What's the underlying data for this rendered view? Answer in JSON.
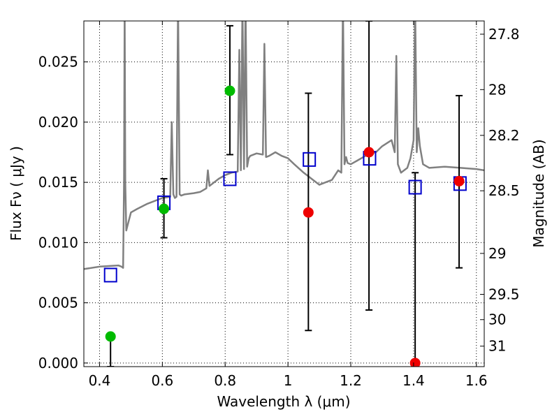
{
  "chart_data": {
    "type": "scatter",
    "title": "",
    "xlabel": "Wavelength  λ (μm)",
    "ylabel": "Flux  Fν  ( μJy )",
    "y2label": "Magnitude (AB)",
    "xlim": [
      0.35,
      1.625
    ],
    "ylim": [
      -0.0003,
      0.0284
    ],
    "grid": true,
    "x_ticks": [
      0.4,
      0.6,
      0.8,
      1.0,
      1.2,
      1.4,
      1.6
    ],
    "x_tick_labels": [
      "0.4",
      "0.6",
      "0.8",
      "1",
      "1.2",
      "1.4",
      "1.6"
    ],
    "y_ticks": [
      0.0,
      0.005,
      0.01,
      0.015,
      0.02,
      0.025
    ],
    "y_tick_labels": [
      "0.000",
      "0.005",
      "0.010",
      "0.015",
      "0.020",
      "0.025"
    ],
    "y2_ticks": [
      {
        "label": "27.8",
        "flux": 0.0273
      },
      {
        "label": "28",
        "flux": 0.0227
      },
      {
        "label": "28.2",
        "flux": 0.0189
      },
      {
        "label": "28.5",
        "flux": 0.0143
      },
      {
        "label": "29",
        "flux": 0.0091
      },
      {
        "label": "29.5",
        "flux": 0.0057
      },
      {
        "label": "30",
        "flux": 0.0036
      },
      {
        "label": "31",
        "flux": 0.0014
      }
    ],
    "series": [
      {
        "kind": "line",
        "color": "#808080",
        "x": [
          0.35,
          0.4,
          0.46,
          0.47,
          0.475,
          0.478,
          0.48,
          0.482,
          0.485,
          0.49,
          0.5,
          0.52,
          0.55,
          0.6,
          0.625,
          0.63,
          0.635,
          0.64,
          0.645,
          0.65,
          0.655,
          0.66,
          0.67,
          0.7,
          0.72,
          0.74,
          0.745,
          0.75,
          0.76,
          0.78,
          0.8,
          0.82,
          0.84,
          0.845,
          0.85,
          0.855,
          0.86,
          0.865,
          0.87,
          0.875,
          0.88,
          0.9,
          0.92,
          0.925,
          0.93,
          0.94,
          0.96,
          0.98,
          1.0,
          1.02,
          1.05,
          1.08,
          1.1,
          1.12,
          1.14,
          1.16,
          1.17,
          1.175,
          1.18,
          1.185,
          1.19,
          1.2,
          1.22,
          1.24,
          1.26,
          1.28,
          1.3,
          1.33,
          1.34,
          1.345,
          1.35,
          1.36,
          1.38,
          1.39,
          1.4,
          1.405,
          1.41,
          1.415,
          1.42,
          1.43,
          1.45,
          1.5,
          1.55,
          1.6,
          1.625
        ],
        "y": [
          0.0078,
          0.008,
          0.0081,
          0.008,
          0.0079,
          0.015,
          0.03,
          0.015,
          0.011,
          0.0115,
          0.0125,
          0.0128,
          0.0132,
          0.0137,
          0.0138,
          0.02,
          0.014,
          0.0137,
          0.0138,
          0.03,
          0.014,
          0.0139,
          0.014,
          0.0141,
          0.0142,
          0.0145,
          0.016,
          0.0147,
          0.0149,
          0.0153,
          0.0156,
          0.0158,
          0.0159,
          0.026,
          0.016,
          0.03,
          0.0161,
          0.03,
          0.0163,
          0.017,
          0.0172,
          0.0174,
          0.0173,
          0.0265,
          0.0171,
          0.0172,
          0.0175,
          0.0172,
          0.017,
          0.0165,
          0.0158,
          0.0152,
          0.0148,
          0.015,
          0.0152,
          0.016,
          0.0158,
          0.03,
          0.0165,
          0.0171,
          0.0166,
          0.0165,
          0.0168,
          0.0171,
          0.0174,
          0.0175,
          0.018,
          0.0185,
          0.0175,
          0.0255,
          0.0165,
          0.0158,
          0.0162,
          0.017,
          0.0185,
          0.03,
          0.0175,
          0.0195,
          0.018,
          0.0165,
          0.0162,
          0.0163,
          0.0162,
          0.0161,
          0.016
        ]
      },
      {
        "kind": "open-square",
        "color": "#0000cc",
        "x": [
          0.435,
          0.605,
          0.815,
          1.068,
          1.26,
          1.405,
          1.548
        ],
        "y": [
          0.0073,
          0.0133,
          0.0153,
          0.0169,
          0.017,
          0.0146,
          0.0149
        ]
      },
      {
        "kind": "filled-circle",
        "color": "#00bb00",
        "x": [
          0.435,
          0.605,
          0.815
        ],
        "y": [
          0.0022,
          0.0128,
          0.0226
        ]
      },
      {
        "kind": "filled-circle",
        "color": "#ee0000",
        "x": [
          1.065,
          1.258,
          1.405,
          1.545
        ],
        "y": [
          0.0125,
          0.0175,
          0.0,
          0.0151
        ]
      },
      {
        "kind": "errorbar",
        "color": "#000000",
        "x": [
          0.435,
          0.605,
          0.815,
          1.065,
          1.258,
          1.405,
          1.545
        ],
        "y": [
          0.0022,
          0.0128,
          0.0226,
          0.0125,
          0.0175,
          0.0,
          0.0151
        ],
        "low": [
          -0.0003,
          0.0104,
          0.0173,
          0.0027,
          0.0044,
          -0.0003,
          0.0079
        ],
        "high": [
          0.0022,
          0.0153,
          0.028,
          0.0224,
          0.0284,
          0.0158,
          0.0222
        ]
      }
    ]
  }
}
